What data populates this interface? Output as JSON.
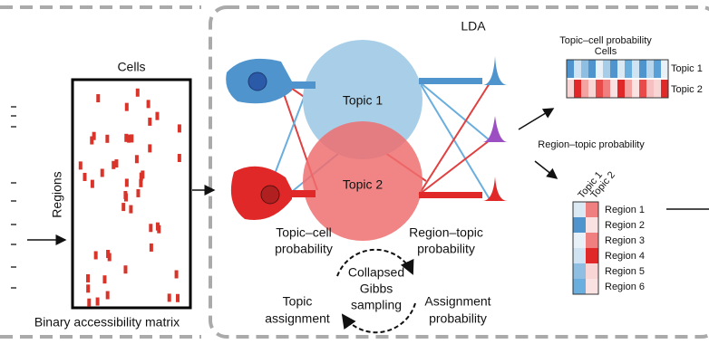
{
  "matrix": {
    "title": "Cells",
    "axis_label": "Regions",
    "caption": "Binary accessibility matrix"
  },
  "lda": {
    "title": "LDA",
    "topics": [
      "Topic 1",
      "Topic 2"
    ],
    "left_label": [
      "Topic–cell",
      "probability"
    ],
    "right_label": [
      "Region–topic",
      "probability"
    ],
    "cycle": {
      "center": [
        "Collapsed",
        "Gibbs",
        "sampling"
      ],
      "left": [
        "Topic",
        "assignment"
      ],
      "right": [
        "Assignment",
        "probability"
      ]
    }
  },
  "outputs": {
    "topic_cell": {
      "title": "Topic–cell probability",
      "subtitle": "Cells",
      "rows": [
        "Topic 1",
        "Topic 2"
      ]
    },
    "region_topic": {
      "title": "Region–topic probability",
      "columns": [
        "Topic 1",
        "Topic 2"
      ],
      "rows": [
        "Region 1",
        "Region 2",
        "Region 3",
        "Region 4",
        "Region 5",
        "Region 6"
      ]
    }
  }
}
